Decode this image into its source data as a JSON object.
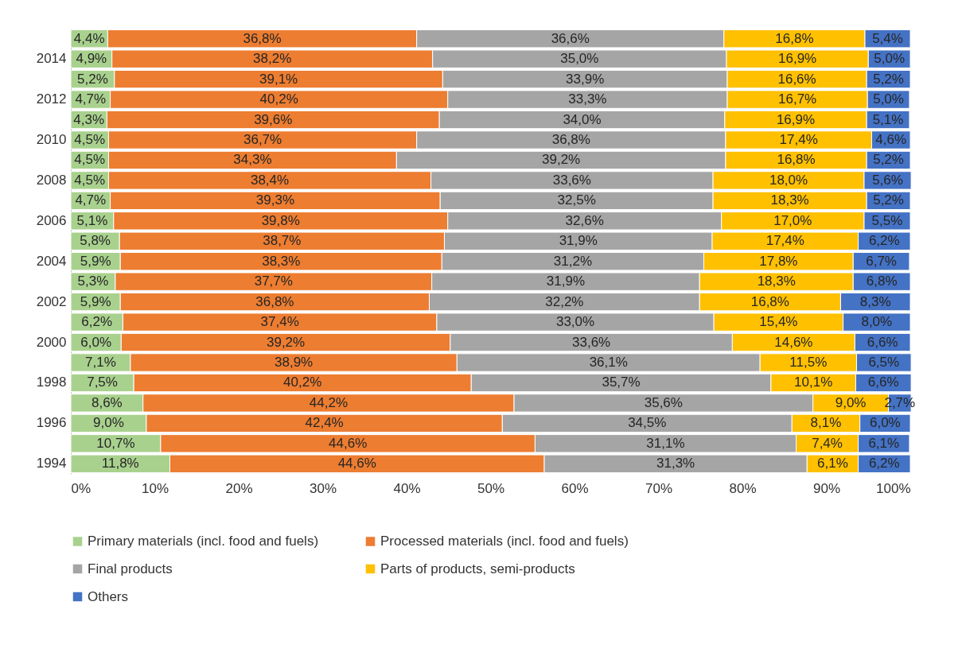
{
  "chart_data": {
    "type": "bar",
    "orientation": "horizontal",
    "stacked": true,
    "legend": "bottom",
    "categories": [
      null,
      "2014",
      null,
      "2012",
      null,
      "2010",
      null,
      "2008",
      null,
      "2006",
      null,
      "2004",
      null,
      "2002",
      null,
      "2000",
      null,
      "1998",
      null,
      "1996",
      null,
      "1994"
    ],
    "xlim": [
      0,
      100
    ],
    "xticks": [
      {
        "value": 0,
        "label": "0%"
      },
      {
        "value": 10,
        "label": "10%"
      },
      {
        "value": 20,
        "label": "20%"
      },
      {
        "value": 30,
        "label": "30%"
      },
      {
        "value": 40,
        "label": "40%"
      },
      {
        "value": 50,
        "label": "50%"
      },
      {
        "value": 60,
        "label": "60%"
      },
      {
        "value": 70,
        "label": "70%"
      },
      {
        "value": 80,
        "label": "80%"
      },
      {
        "value": 90,
        "label": "90%"
      },
      {
        "value": 100,
        "label": "100%"
      }
    ],
    "series": [
      {
        "name": "Primary materials  (incl. food and fuels)",
        "color": "#a9d18e",
        "values": [
          4.4,
          4.9,
          5.2,
          4.7,
          4.3,
          4.5,
          4.5,
          4.5,
          4.7,
          5.1,
          5.8,
          5.9,
          5.3,
          5.9,
          6.2,
          6.0,
          7.1,
          7.5,
          8.6,
          9.0,
          10.7,
          11.8
        ],
        "value_labels": [
          "4,4%",
          "4,9%",
          "5,2%",
          "4,7%",
          "4,3%",
          "4,5%",
          "4,5%",
          "4,5%",
          "4,7%",
          "5,1%",
          "5,8%",
          "5,9%",
          "5,3%",
          "5,9%",
          "6,2%",
          "6,0%",
          "7,1%",
          "7,5%",
          "8,6%",
          "9,0%",
          "10,7%",
          "11,8%"
        ]
      },
      {
        "name": "Processed materials  (incl. food and fuels)",
        "color": "#ed7d31",
        "values": [
          36.8,
          38.2,
          39.1,
          40.2,
          39.6,
          36.7,
          34.3,
          38.4,
          39.3,
          39.8,
          38.7,
          38.3,
          37.7,
          36.8,
          37.4,
          39.2,
          38.9,
          40.2,
          44.2,
          42.4,
          44.6,
          44.6
        ],
        "value_labels": [
          "36,8%",
          "38,2%",
          "39,1%",
          "40,2%",
          "39,6%",
          "36,7%",
          "34,3%",
          "38,4%",
          "39,3%",
          "39,8%",
          "38,7%",
          "38,3%",
          "37,7%",
          "36,8%",
          "37,4%",
          "39,2%",
          "38,9%",
          "40,2%",
          "44,2%",
          "42,4%",
          "44,6%",
          "44,6%"
        ]
      },
      {
        "name": "Final products",
        "color": "#a5a5a5",
        "values": [
          36.6,
          35.0,
          33.9,
          33.3,
          34.0,
          36.8,
          39.2,
          33.6,
          32.5,
          32.6,
          31.9,
          31.2,
          31.9,
          32.2,
          33.0,
          33.6,
          36.1,
          35.7,
          35.6,
          34.5,
          31.1,
          31.3
        ],
        "value_labels": [
          "36,6%",
          "35,0%",
          "33,9%",
          "33,3%",
          "34,0%",
          "36,8%",
          "39,2%",
          "33,6%",
          "32,5%",
          "32,6%",
          "31,9%",
          "31,2%",
          "31,9%",
          "32,2%",
          "33,0%",
          "33,6%",
          "36,1%",
          "35,7%",
          "35,6%",
          "34,5%",
          "31,1%",
          "31,3%"
        ]
      },
      {
        "name": "Parts of products, semi-products",
        "color": "#ffc000",
        "values": [
          16.8,
          16.9,
          16.6,
          16.7,
          16.9,
          17.4,
          16.8,
          18.0,
          18.3,
          17.0,
          17.4,
          17.8,
          18.3,
          16.8,
          15.4,
          14.6,
          11.5,
          10.1,
          9.0,
          8.1,
          7.4,
          6.1
        ],
        "value_labels": [
          "16,8%",
          "16,9%",
          "16,6%",
          "16,7%",
          "16,9%",
          "17,4%",
          "16,8%",
          "18,0%",
          "18,3%",
          "17,0%",
          "17,4%",
          "17,8%",
          "18,3%",
          "16,8%",
          "15,4%",
          "14,6%",
          "11,5%",
          "10,1%",
          "9,0%",
          "8,1%",
          "7,4%",
          "6,1%"
        ]
      },
      {
        "name": "Others",
        "color": "#4472c4",
        "values": [
          5.4,
          5.0,
          5.2,
          5.0,
          5.1,
          4.6,
          5.2,
          5.6,
          5.2,
          5.5,
          6.2,
          6.7,
          6.8,
          8.3,
          8.0,
          6.6,
          6.5,
          6.6,
          2.7,
          6.0,
          6.1,
          6.2
        ],
        "value_labels": [
          "5,4%",
          "5,0%",
          "5,2%",
          "5,0%",
          "5,1%",
          "4,6%",
          "5,2%",
          "5,6%",
          "5,2%",
          "5,5%",
          "6,2%",
          "6,7%",
          "6,8%",
          "8,3%",
          "8,0%",
          "6,6%",
          "6,5%",
          "6,6%",
          "2,7%",
          "6,0%",
          "6,1%",
          "6,2%"
        ]
      }
    ]
  }
}
